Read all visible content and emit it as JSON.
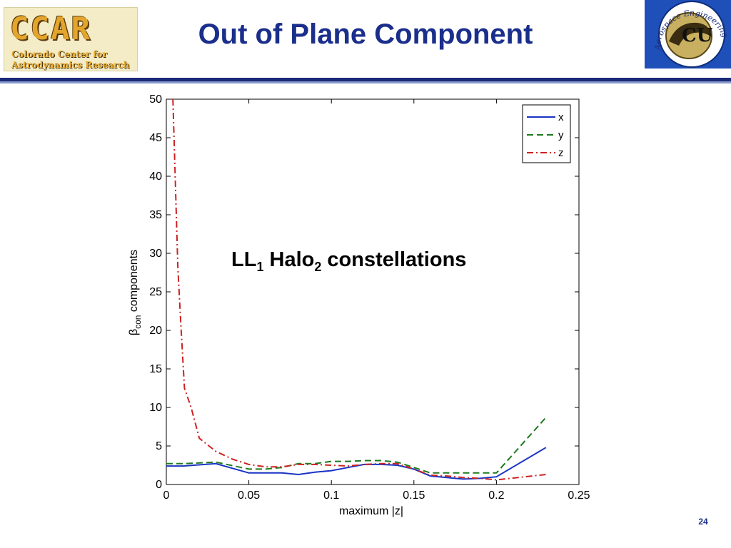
{
  "slide": {
    "title": "Out of Plane Component",
    "page_number": "24"
  },
  "logos": {
    "left": {
      "acronym": "CCAR",
      "line1": "Colorado Center for",
      "line2": "Astrodynamics Research"
    },
    "right": {
      "emblem": "CU",
      "arc_text": "Aerospace Engineering"
    }
  },
  "colors": {
    "title": "#1a2e8c",
    "header_rule": "#1a2a78",
    "x_series": "#1a33c4",
    "y_series": "#1e7a1e",
    "z_series": "#cc2222"
  },
  "chart_data": {
    "type": "line",
    "xlabel": "maximum |z|",
    "ylabel": "β_con components",
    "ylabel_main": "β",
    "ylabel_sub": "con",
    "ylabel_rest": " components",
    "annotation": {
      "p1": "LL",
      "s1": "1",
      "p2": " Halo",
      "s2": "2",
      "p3": " constellations"
    },
    "xlim": [
      0,
      0.25
    ],
    "ylim": [
      0,
      50
    ],
    "x_ticks": [
      0,
      0.05,
      0.1,
      0.15,
      0.2,
      0.25
    ],
    "x_tick_labels": [
      "0",
      "0.05",
      "0.1",
      "0.15",
      "0.2",
      "0.25"
    ],
    "y_ticks": [
      0,
      5,
      10,
      15,
      20,
      25,
      30,
      35,
      40,
      45,
      50
    ],
    "y_tick_labels": [
      "0",
      "5",
      "10",
      "15",
      "20",
      "25",
      "30",
      "35",
      "40",
      "45",
      "50"
    ],
    "grid": false,
    "legend_position": "top-right",
    "series": [
      {
        "name": "x",
        "style": "solid",
        "points": [
          [
            0,
            2.4
          ],
          [
            0.01,
            2.4
          ],
          [
            0.03,
            2.7
          ],
          [
            0.05,
            1.5
          ],
          [
            0.06,
            1.5
          ],
          [
            0.07,
            1.5
          ],
          [
            0.08,
            1.3
          ],
          [
            0.09,
            1.6
          ],
          [
            0.1,
            1.8
          ],
          [
            0.11,
            2.2
          ],
          [
            0.12,
            2.6
          ],
          [
            0.13,
            2.6
          ],
          [
            0.14,
            2.5
          ],
          [
            0.15,
            2.0
          ],
          [
            0.16,
            1.1
          ],
          [
            0.17,
            0.9
          ],
          [
            0.18,
            0.7
          ],
          [
            0.19,
            0.8
          ],
          [
            0.2,
            1.0
          ],
          [
            0.23,
            4.8
          ]
        ]
      },
      {
        "name": "y",
        "style": "dashed",
        "points": [
          [
            0,
            2.7
          ],
          [
            0.01,
            2.7
          ],
          [
            0.03,
            2.9
          ],
          [
            0.05,
            2.0
          ],
          [
            0.06,
            2.0
          ],
          [
            0.07,
            2.2
          ],
          [
            0.08,
            2.7
          ],
          [
            0.09,
            2.7
          ],
          [
            0.1,
            3.0
          ],
          [
            0.11,
            3.0
          ],
          [
            0.12,
            3.1
          ],
          [
            0.13,
            3.1
          ],
          [
            0.14,
            2.9
          ],
          [
            0.15,
            2.2
          ],
          [
            0.16,
            1.5
          ],
          [
            0.17,
            1.5
          ],
          [
            0.18,
            1.5
          ],
          [
            0.19,
            1.5
          ],
          [
            0.2,
            1.5
          ],
          [
            0.23,
            8.7
          ]
        ]
      },
      {
        "name": "z",
        "style": "dashdot",
        "points": [
          [
            0.004,
            50
          ],
          [
            0.007,
            28
          ],
          [
            0.009,
            20
          ],
          [
            0.011,
            12.5
          ],
          [
            0.015,
            10
          ],
          [
            0.02,
            6
          ],
          [
            0.03,
            4.3
          ],
          [
            0.04,
            3.3
          ],
          [
            0.05,
            2.6
          ],
          [
            0.06,
            2.3
          ],
          [
            0.07,
            2.3
          ],
          [
            0.08,
            2.6
          ],
          [
            0.09,
            2.6
          ],
          [
            0.1,
            2.5
          ],
          [
            0.11,
            2.4
          ],
          [
            0.12,
            2.6
          ],
          [
            0.13,
            2.7
          ],
          [
            0.14,
            2.7
          ],
          [
            0.15,
            2.0
          ],
          [
            0.16,
            1.2
          ],
          [
            0.17,
            1.1
          ],
          [
            0.18,
            0.9
          ],
          [
            0.19,
            0.8
          ],
          [
            0.2,
            0.6
          ],
          [
            0.23,
            1.3
          ]
        ]
      }
    ]
  }
}
